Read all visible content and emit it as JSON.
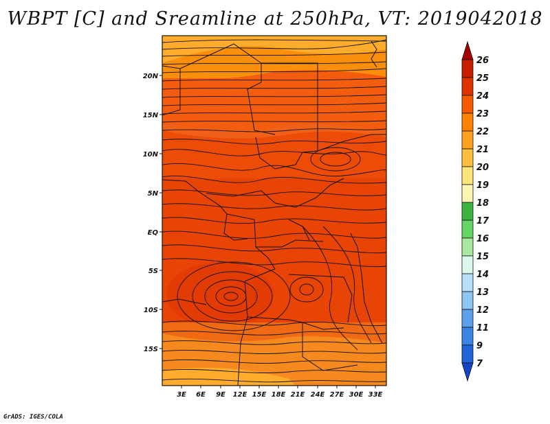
{
  "title": "WBPT [C] and Sreamline at 250hPa, VT: 2019042018",
  "credit": "GrADS: IGES/COLA",
  "map": {
    "lat_labels": [
      "20N",
      "15N",
      "10N",
      "5N",
      "EQ",
      "5S",
      "10S",
      "15S"
    ],
    "lon_labels": [
      "3E",
      "6E",
      "9E",
      "12E",
      "15E",
      "18E",
      "21E",
      "24E",
      "27E",
      "30E",
      "33E"
    ]
  },
  "colorbar": {
    "labels": [
      "26",
      "25",
      "24",
      "23",
      "22",
      "21",
      "20",
      "19",
      "18",
      "17",
      "16",
      "15",
      "14",
      "13",
      "12",
      "11",
      "9",
      "7"
    ],
    "colors": [
      "#a50000",
      "#c81e00",
      "#e03200",
      "#f55a00",
      "#ff8200",
      "#ffa020",
      "#ffc040",
      "#ffe47c",
      "#fff4b4",
      "#3cb440",
      "#64d464",
      "#a8e8a0",
      "#dcf8ec",
      "#b8e0fc",
      "#8cc4f4",
      "#5ca0ec",
      "#3c84e4",
      "#2064d8",
      "#1446c8"
    ]
  }
}
